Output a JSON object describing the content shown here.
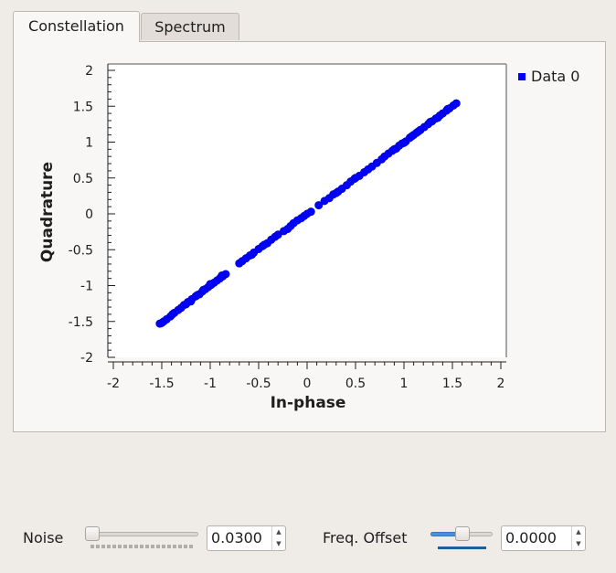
{
  "tabs": [
    {
      "label": "Constellation",
      "active": true
    },
    {
      "label": "Spectrum",
      "active": false
    }
  ],
  "controls": {
    "noise": {
      "label": "Noise",
      "value": "0.0300",
      "slider_level": 0.05
    },
    "freq_offset": {
      "label": "Freq. Offset",
      "value": "0.0000",
      "slider_level": 0.5
    }
  },
  "legend": [
    {
      "label": "Data 0",
      "color": "#0000ff"
    }
  ],
  "icons": {
    "spin_up": "chevron-up-icon",
    "spin_down": "chevron-down-icon"
  },
  "chart_data": {
    "type": "scatter",
    "xlabel": "In-phase",
    "ylabel": "Quadrature",
    "xlim": [
      -2,
      2
    ],
    "ylim": [
      -2,
      2
    ],
    "xticks": [
      "-2",
      "-1.5",
      "-1",
      "-0.5",
      "0",
      "0.5",
      "1",
      "1.5",
      "2"
    ],
    "yticks": [
      "2",
      "1.5",
      "1",
      "0.5",
      "0",
      "-0.5",
      "-1",
      "-1.5",
      "-2"
    ],
    "grid": false,
    "legend_position": "top-right",
    "series": [
      {
        "name": "Data 0",
        "color": "#0000ff",
        "points": [
          [
            -1.52,
            -1.53
          ],
          [
            -1.48,
            -1.5
          ],
          [
            -1.45,
            -1.47
          ],
          [
            -1.41,
            -1.43
          ],
          [
            -1.37,
            -1.38
          ],
          [
            -1.33,
            -1.34
          ],
          [
            -1.3,
            -1.31
          ],
          [
            -1.27,
            -1.27
          ],
          [
            -1.23,
            -1.23
          ],
          [
            -1.19,
            -1.19
          ],
          [
            -1.15,
            -1.15
          ],
          [
            -1.11,
            -1.12
          ],
          [
            -1.08,
            -1.08
          ],
          [
            -1.05,
            -1.05
          ],
          [
            -1.02,
            -1.02
          ],
          [
            -0.99,
            -0.99
          ],
          [
            -0.96,
            -0.96
          ],
          [
            -0.93,
            -0.93
          ],
          [
            -0.9,
            -0.9
          ],
          [
            -0.87,
            -0.87
          ],
          [
            -0.84,
            -0.84
          ],
          [
            -0.7,
            -0.69
          ],
          [
            -0.67,
            -0.66
          ],
          [
            -0.63,
            -0.62
          ],
          [
            -0.59,
            -0.58
          ],
          [
            -0.55,
            -0.54
          ],
          [
            -0.5,
            -0.49
          ],
          [
            -0.46,
            -0.45
          ],
          [
            -0.41,
            -0.41
          ],
          [
            -0.37,
            -0.36
          ],
          [
            -0.33,
            -0.32
          ],
          [
            -0.3,
            -0.29
          ],
          [
            -0.24,
            -0.24
          ],
          [
            -0.2,
            -0.21
          ],
          [
            -0.17,
            -0.17
          ],
          [
            -0.14,
            -0.13
          ],
          [
            -0.1,
            -0.09
          ],
          [
            -0.06,
            -0.06
          ],
          [
            -0.03,
            -0.03
          ],
          [
            0,
            0.0
          ],
          [
            0.04,
            0.03
          ],
          [
            0.12,
            0.12
          ],
          [
            0.18,
            0.18
          ],
          [
            0.23,
            0.22
          ],
          [
            0.27,
            0.27
          ],
          [
            0.32,
            0.31
          ],
          [
            0.36,
            0.35
          ],
          [
            0.41,
            0.4
          ],
          [
            0.45,
            0.45
          ],
          [
            0.49,
            0.49
          ],
          [
            0.54,
            0.53
          ],
          [
            0.59,
            0.58
          ],
          [
            0.63,
            0.62
          ],
          [
            0.67,
            0.66
          ],
          [
            0.72,
            0.71
          ],
          [
            0.8,
            0.8
          ],
          [
            0.84,
            0.84
          ],
          [
            0.88,
            0.88
          ],
          [
            0.92,
            0.91
          ],
          [
            0.95,
            0.95
          ],
          [
            0.98,
            0.98
          ],
          [
            1.02,
            1.01
          ],
          [
            1.06,
            1.06
          ],
          [
            1.1,
            1.1
          ],
          [
            1.13,
            1.13
          ],
          [
            1.17,
            1.17
          ],
          [
            1.21,
            1.21
          ],
          [
            1.25,
            1.25
          ],
          [
            1.29,
            1.29
          ],
          [
            1.33,
            1.33
          ],
          [
            1.37,
            1.37
          ],
          [
            1.4,
            1.4
          ],
          [
            1.44,
            1.44
          ],
          [
            1.47,
            1.47
          ],
          [
            1.51,
            1.51
          ],
          [
            1.54,
            1.54
          ],
          [
            -1.5,
            -1.52
          ],
          [
            -1.39,
            -1.4
          ],
          [
            -1.25,
            -1.26
          ],
          [
            -1.13,
            -1.13
          ],
          [
            -1.0,
            -0.98
          ],
          [
            -0.88,
            -0.86
          ],
          [
            -0.57,
            -0.57
          ],
          [
            -0.44,
            -0.43
          ],
          [
            0.3,
            0.29
          ],
          [
            0.5,
            0.5
          ],
          [
            0.77,
            0.76
          ],
          [
            0.9,
            0.9
          ],
          [
            1.0,
            0.99
          ],
          [
            1.15,
            1.15
          ],
          [
            1.27,
            1.28
          ],
          [
            1.35,
            1.34
          ],
          [
            1.45,
            1.46
          ],
          [
            -1.2,
            -1.22
          ],
          [
            -1.07,
            -1.06
          ],
          [
            1.08,
            1.08
          ]
        ]
      }
    ]
  }
}
